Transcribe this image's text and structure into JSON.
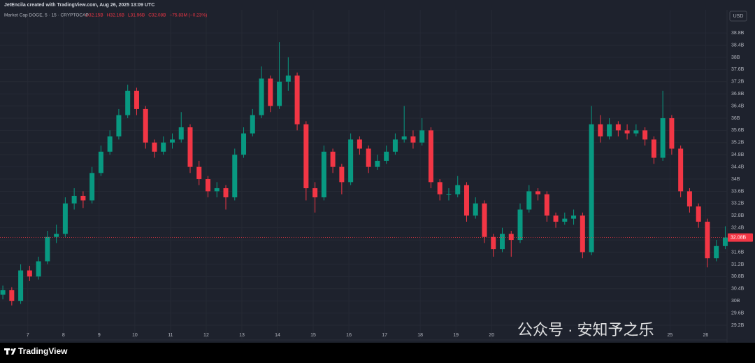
{
  "header": {
    "attribution": "JetEncila created with TradingView.com, Aug 26, 2025 13:09 UTC",
    "brand": "TradingView",
    "watermark": "公众号 · 安知予之乐"
  },
  "chart_data": {
    "type": "candlestick",
    "legend": {
      "symbol": "Market Cap DOGE, 5 · 15 · CRYPTOCAP",
      "ohlc": [
        "O32.15B",
        "H32.16B",
        "L31.96B",
        "C32.08B",
        "−75.83M (−0.23%)"
      ]
    },
    "currency": "USD",
    "up_color": "#089981",
    "down_color": "#f23645",
    "grid": true,
    "xlim": [
      6.22,
      26.6
    ],
    "xticks": [
      7,
      8,
      9,
      10,
      11,
      12,
      13,
      14,
      15,
      16,
      17,
      18,
      19,
      20,
      25,
      26
    ],
    "ylim": [
      28.74,
      39.56
    ],
    "yticks": [
      {
        "value": 29.2,
        "label": "29.2B"
      },
      {
        "value": 29.6,
        "label": "29.6B"
      },
      {
        "value": 30,
        "label": "30B"
      },
      {
        "value": 30.4,
        "label": "30.4B"
      },
      {
        "value": 30.8,
        "label": "30.8B"
      },
      {
        "value": 31.2,
        "label": "31.2B"
      },
      {
        "value": 31.6,
        "label": "31.6B"
      },
      {
        "value": 32,
        "label": "32B"
      },
      {
        "value": 32.4,
        "label": "32.4B"
      },
      {
        "value": 32.8,
        "label": "32.8B"
      },
      {
        "value": 33.2,
        "label": "33.2B"
      },
      {
        "value": 33.6,
        "label": "33.6B"
      },
      {
        "value": 34,
        "label": "34B"
      },
      {
        "value": 34.4,
        "label": "34.4B"
      },
      {
        "value": 34.8,
        "label": "34.8B"
      },
      {
        "value": 35.2,
        "label": "35.2B"
      },
      {
        "value": 35.6,
        "label": "35.6B"
      },
      {
        "value": 36,
        "label": "36B"
      },
      {
        "value": 36.4,
        "label": "36.4B"
      },
      {
        "value": 36.8,
        "label": "36.8B"
      },
      {
        "value": 37.2,
        "label": "37.2B"
      },
      {
        "value": 37.6,
        "label": "37.6B"
      },
      {
        "value": 38,
        "label": "38B"
      },
      {
        "value": 38.4,
        "label": "38.4B"
      },
      {
        "value": 38.8,
        "label": "38.8B"
      }
    ],
    "last_price": {
      "value": 32.08,
      "label": "32.08B",
      "color": "#f23645"
    },
    "x": [
      6.3,
      6.55,
      6.8,
      7.05,
      7.3,
      7.55,
      7.8,
      8.05,
      8.3,
      8.55,
      8.8,
      9.05,
      9.3,
      9.55,
      9.8,
      10.05,
      10.3,
      10.55,
      10.8,
      11.05,
      11.3,
      11.55,
      11.8,
      12.05,
      12.3,
      12.55,
      12.8,
      13.05,
      13.3,
      13.55,
      13.8,
      14.05,
      14.3,
      14.55,
      14.8,
      15.05,
      15.3,
      15.55,
      15.8,
      16.05,
      16.3,
      16.55,
      16.8,
      17.05,
      17.3,
      17.55,
      17.8,
      18.05,
      18.3,
      18.55,
      18.8,
      19.05,
      19.3,
      19.55,
      19.8,
      20.05,
      20.3,
      20.55,
      20.8,
      21.05,
      21.3,
      21.55,
      21.8,
      22.05,
      22.3,
      22.55,
      22.8,
      23.05,
      23.3,
      23.55,
      23.8,
      24.05,
      24.3,
      24.55,
      24.8,
      25.05,
      25.3,
      25.55,
      25.8,
      26.05,
      26.3,
      26.55
    ],
    "open": [
      30.2,
      30.35,
      30.0,
      31.0,
      30.8,
      31.3,
      32.1,
      32.2,
      33.2,
      33.45,
      33.3,
      34.2,
      34.9,
      35.4,
      36.1,
      36.9,
      36.3,
      35.2,
      34.9,
      35.2,
      35.3,
      35.7,
      34.4,
      34.0,
      33.6,
      33.7,
      33.4,
      34.8,
      35.5,
      36.1,
      37.3,
      36.4,
      37.2,
      37.4,
      35.8,
      33.7,
      33.4,
      34.9,
      34.4,
      33.9,
      35.3,
      35.0,
      34.4,
      34.6,
      34.9,
      35.3,
      35.4,
      35.2,
      35.6,
      33.9,
      33.5,
      33.5,
      33.8,
      32.8,
      33.2,
      32.1,
      31.7,
      32.2,
      32.0,
      33.0,
      33.6,
      33.5,
      32.8,
      32.6,
      32.7,
      32.8,
      31.6,
      35.8,
      35.4,
      35.8,
      35.6,
      35.5,
      35.6,
      35.3,
      34.7,
      36.0,
      35.0,
      33.6,
      33.1,
      32.6,
      31.4,
      31.8
    ],
    "high": [
      30.5,
      30.45,
      31.2,
      31.15,
      31.45,
      32.3,
      32.5,
      33.4,
      33.7,
      33.6,
      34.4,
      35.1,
      35.6,
      36.3,
      37.1,
      37.0,
      36.4,
      35.3,
      35.4,
      35.5,
      36.2,
      35.8,
      34.6,
      34.1,
      33.9,
      33.8,
      35.0,
      35.7,
      36.3,
      37.7,
      37.4,
      38.5,
      38.0,
      37.5,
      35.9,
      33.9,
      35.1,
      35.0,
      34.5,
      35.5,
      35.4,
      35.1,
      34.8,
      35.1,
      35.5,
      36.4,
      35.6,
      36.0,
      35.7,
      34.0,
      33.7,
      34.1,
      33.9,
      33.4,
      33.3,
      32.2,
      32.4,
      32.3,
      33.2,
      33.8,
      33.7,
      33.6,
      32.9,
      32.9,
      33.0,
      32.9,
      36.4,
      36.1,
      36.0,
      35.9,
      35.8,
      35.8,
      35.7,
      35.4,
      36.9,
      36.1,
      35.1,
      33.7,
      33.2,
      32.7,
      32.0,
      32.45
    ],
    "low": [
      30.05,
      29.85,
      29.9,
      30.65,
      30.7,
      31.2,
      31.9,
      32.1,
      33.0,
      33.05,
      33.2,
      34.1,
      34.8,
      35.3,
      36.0,
      36.1,
      35.0,
      34.7,
      34.8,
      35.0,
      35.2,
      34.2,
      33.8,
      33.4,
      33.4,
      33.0,
      33.3,
      34.7,
      35.4,
      36.0,
      36.2,
      36.3,
      36.9,
      35.6,
      33.3,
      32.9,
      33.3,
      34.2,
      33.5,
      33.8,
      34.8,
      34.2,
      34.3,
      34.5,
      34.8,
      35.2,
      35.0,
      35.1,
      33.7,
      33.3,
      33.3,
      33.4,
      32.6,
      32.7,
      31.9,
      31.45,
      31.6,
      31.45,
      31.9,
      32.9,
      33.3,
      32.6,
      32.4,
      32.5,
      32.5,
      31.4,
      31.5,
      35.2,
      35.3,
      35.4,
      35.3,
      35.4,
      35.1,
      34.5,
      34.6,
      34.8,
      33.4,
      32.9,
      32.4,
      31.1,
      31.3,
      31.7
    ],
    "close": [
      30.35,
      30.0,
      31.0,
      30.8,
      31.3,
      32.1,
      32.2,
      33.2,
      33.45,
      33.3,
      34.2,
      34.9,
      35.4,
      36.1,
      36.9,
      36.3,
      35.2,
      34.9,
      35.2,
      35.3,
      35.7,
      34.4,
      34.0,
      33.6,
      33.7,
      33.4,
      34.8,
      35.5,
      36.1,
      37.3,
      36.4,
      37.2,
      37.4,
      35.8,
      33.7,
      33.4,
      34.9,
      34.4,
      33.9,
      35.3,
      35.0,
      34.4,
      34.6,
      34.9,
      35.3,
      35.4,
      35.2,
      35.6,
      33.9,
      33.5,
      33.5,
      33.8,
      32.8,
      33.2,
      32.1,
      31.7,
      32.2,
      32.0,
      33.0,
      33.6,
      33.5,
      32.8,
      32.6,
      32.7,
      32.8,
      31.6,
      35.8,
      35.4,
      35.8,
      35.6,
      35.5,
      35.6,
      35.3,
      34.7,
      36.0,
      35.0,
      33.6,
      33.1,
      32.6,
      31.4,
      31.8,
      32.08
    ]
  }
}
